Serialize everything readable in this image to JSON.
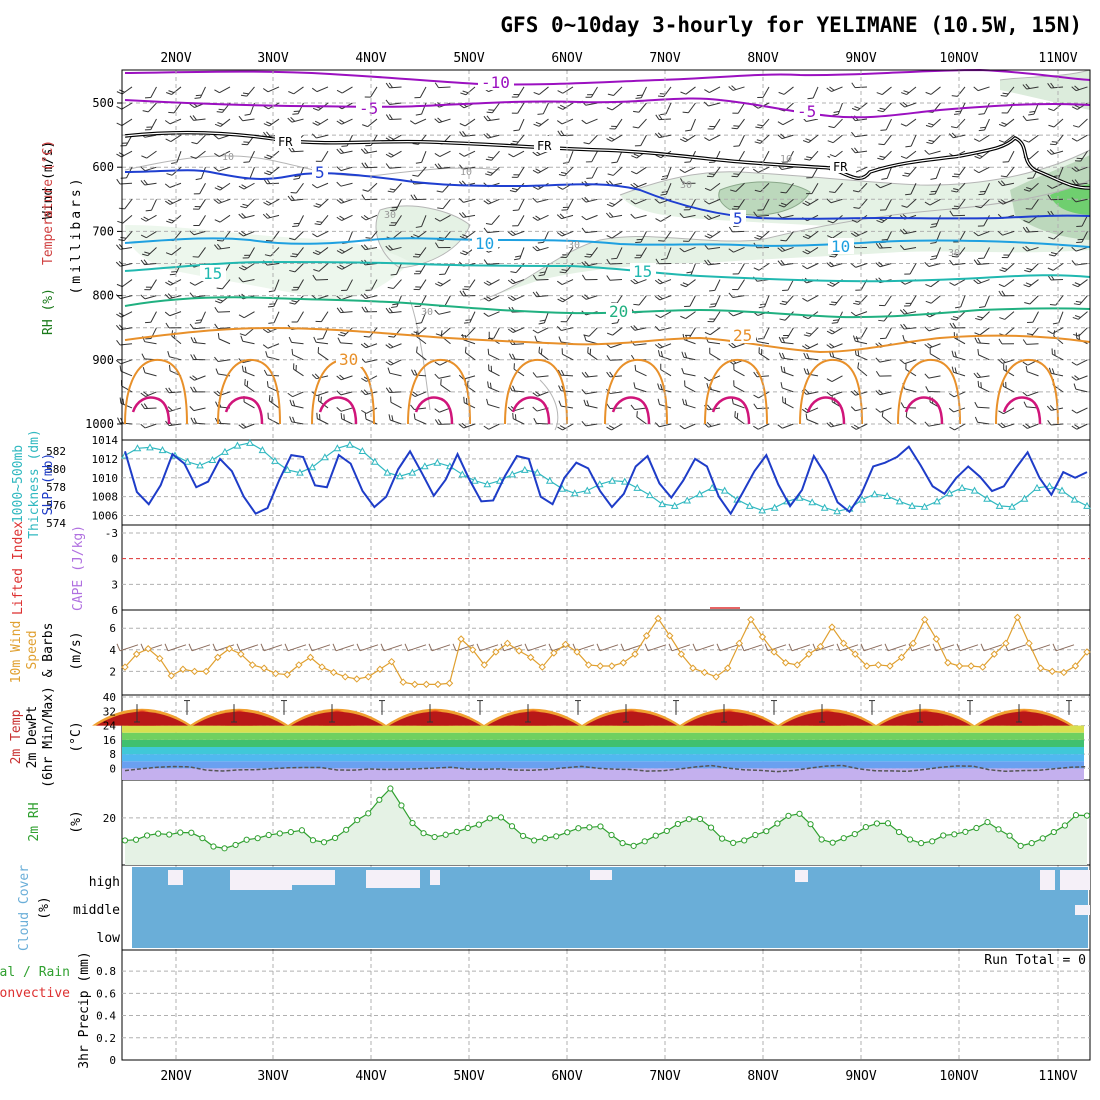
{
  "title": "GFS 0~10day 3-hourly for YELIMANE (10.5W, 15N)",
  "colors": {
    "temp_label": "#c83030",
    "wind_label": "#202020",
    "rh_fill": "#2e9e3e",
    "thickness": "#30b8c0",
    "slp": "#1e3cc8",
    "lifted": "#dd3030",
    "cape": "#b070e0",
    "wind10": "#e0a030",
    "rh2m": "#30a030",
    "cloud": "#6aaed8",
    "precip_total": "#30a030",
    "precip_conv": "#dd3030"
  },
  "chart_data": [
    {
      "type": "line",
      "panel": "upper-air",
      "title": "Temperature (°C) / Wind (m/s) / RH (%)",
      "ylabel": "millibars",
      "y_ticks": [
        500,
        600,
        700,
        800,
        900,
        1000
      ],
      "ylim": [
        1000,
        450
      ],
      "x_dates": [
        "2NOV",
        "3NOV",
        "4NOV",
        "5NOV",
        "6NOV",
        "7NOV",
        "8NOV",
        "9NOV",
        "10NOV",
        "11NOV"
      ],
      "isotherm_labels": [
        {
          "value": "-10",
          "color": "#9b10c0"
        },
        {
          "value": "-5",
          "color": "#9b10c0"
        },
        {
          "value": "-5",
          "color": "#9b10c0"
        },
        {
          "value": "FR",
          "color": "#000000"
        },
        {
          "value": "FR",
          "color": "#000000"
        },
        {
          "value": "FR",
          "color": "#000000"
        },
        {
          "value": "5",
          "color": "#1f3fd0"
        },
        {
          "value": "5",
          "color": "#1f3fd0"
        },
        {
          "value": "10",
          "color": "#1ea0e0"
        },
        {
          "value": "10",
          "color": "#1ea0e0"
        },
        {
          "value": "15",
          "color": "#20b8b0"
        },
        {
          "value": "15",
          "color": "#20b8b0"
        },
        {
          "value": "20",
          "color": "#20b080"
        },
        {
          "value": "25",
          "color": "#e8902a"
        },
        {
          "value": "30",
          "color": "#e8902a"
        }
      ],
      "rh_contour_labels": [
        "10",
        "10",
        "10",
        "30",
        "30",
        "30",
        "30",
        "30"
      ]
    },
    {
      "type": "line",
      "panel": "thickness-slp",
      "series": [
        {
          "name": "1000~500mb Thickness (dm)",
          "y_ticks": [
            574,
            576,
            578,
            580,
            582
          ],
          "values": [
            581.5,
            582.3,
            582.4,
            582.1,
            581.5,
            580.8,
            580.4,
            581.0,
            581.9,
            582.6,
            582.9,
            582.1,
            580.9,
            579.9,
            579.6,
            580.2,
            581.3,
            582.3,
            582.7,
            582.0,
            580.8,
            579.6,
            579.2,
            579.6,
            580.3,
            580.7,
            580.3,
            579.4,
            578.7,
            578.3,
            578.7,
            579.4,
            579.9,
            579.6,
            578.7,
            577.8,
            577.3,
            577.6,
            578.3,
            578.7,
            578.6,
            577.9,
            577.1,
            576.1,
            575.9,
            576.5,
            577.2,
            577.9,
            577.6,
            576.6,
            575.9,
            575.4,
            575.7,
            576.4,
            576.8,
            576.3,
            575.7,
            575.3,
            575.6,
            576.6,
            577.2,
            577.0,
            576.4,
            575.9,
            575.8,
            576.4,
            577.3,
            577.9,
            577.6,
            576.7,
            575.9,
            575.8,
            576.7,
            577.9,
            578.1,
            577.6,
            576.6,
            575.9
          ]
        },
        {
          "name": "SLP (mb)",
          "y_ticks": [
            1006,
            1008,
            1010,
            1012,
            1014
          ],
          "values": [
            1012.8,
            1008.5,
            1007.2,
            1009.2,
            1012.5,
            1011.5,
            1009.0,
            1009.6,
            1012.0,
            1010.7,
            1008.0,
            1006.2,
            1006.8,
            1009.8,
            1012.4,
            1012.2,
            1009.2,
            1009.0,
            1012.4,
            1011.5,
            1008.6,
            1006.9,
            1008.0,
            1010.9,
            1012.8,
            1010.5,
            1008.1,
            1009.8,
            1012.5,
            1009.8,
            1007.5,
            1007.6,
            1010.2,
            1012.3,
            1012.0,
            1008.0,
            1007.2,
            1010.0,
            1011.6,
            1011.0,
            1008.6,
            1006.9,
            1008.3,
            1011.2,
            1012.3,
            1009.4,
            1007.9,
            1009.7,
            1012.0,
            1011.2,
            1008.0,
            1006.2,
            1008.4,
            1010.7,
            1012.4,
            1009.3,
            1007.0,
            1008.7,
            1012.3,
            1010.3,
            1007.4,
            1006.4,
            1008.3,
            1011.2,
            1011.6,
            1012.2,
            1013.3,
            1011.3,
            1009.1,
            1008.3,
            1010.0,
            1011.2,
            1010.1,
            1008.6,
            1009.1,
            1011.0,
            1012.7,
            1010.0,
            1008.2,
            1010.6,
            1010.0,
            1010.6
          ]
        }
      ]
    },
    {
      "type": "line",
      "panel": "lifted-cape",
      "series": [
        {
          "name": "Lifted Index",
          "y_ticks": [
            -3,
            0,
            3,
            6
          ]
        },
        {
          "name": "CAPE (J/kg)",
          "y_ticks": []
        }
      ]
    },
    {
      "type": "line",
      "panel": "wind10m",
      "ylabel": "(m/s)",
      "y_ticks": [
        2,
        4,
        6
      ],
      "series": [
        {
          "name": "10m Wind Speed & Barbs",
          "values": [
            2.4,
            3.6,
            4.1,
            3.2,
            1.6,
            2.2,
            2.0,
            2.0,
            3.3,
            4.1,
            3.6,
            2.6,
            2.3,
            1.8,
            1.7,
            2.6,
            3.3,
            2.4,
            1.9,
            1.5,
            1.3,
            1.5,
            2.2,
            2.9,
            1.0,
            0.8,
            0.8,
            0.8,
            0.9,
            5.0,
            4.0,
            2.6,
            3.8,
            4.6,
            3.9,
            3.3,
            2.4,
            3.7,
            4.5,
            3.8,
            2.6,
            2.5,
            2.5,
            2.8,
            3.6,
            5.3,
            6.9,
            5.3,
            3.6,
            2.3,
            1.9,
            1.5,
            2.3,
            4.6,
            6.8,
            5.2,
            3.8,
            2.8,
            2.6,
            3.6,
            4.3,
            6.1,
            4.6,
            3.6,
            2.5,
            2.6,
            2.5,
            3.3,
            4.6,
            6.8,
            5.0,
            2.8,
            2.5,
            2.5,
            2.4,
            3.6,
            4.6,
            7.0,
            4.6,
            2.3,
            2.0,
            1.9,
            2.5,
            3.8
          ]
        }
      ]
    },
    {
      "type": "area",
      "panel": "temp2m",
      "ylabel": "(°C)",
      "y_ticks": [
        0,
        8,
        16,
        24,
        32,
        40
      ],
      "series": [
        {
          "name": "2m Temp",
          "values": [
            38.4,
            39.6,
            39.0,
            33.5,
            28.2,
            24.9,
            29.9,
            35.0
          ]
        },
        {
          "name": "2m DewPt",
          "values": [
            -1.2,
            -0.7,
            0.1,
            0.8,
            1.1,
            -0.4,
            -1.0,
            -0.8
          ]
        }
      ]
    },
    {
      "type": "area",
      "panel": "rh2m",
      "ylabel": "(%)",
      "y_ticks": [
        20
      ],
      "series": [
        {
          "name": "2m RH",
          "values": [
            10.0,
            10.3,
            12.2,
            13.0,
            12.6,
            13.5,
            13.4,
            11.0,
            7.3,
            6.5,
            8.0,
            10.3,
            11.0,
            12.4,
            13.1,
            13.7,
            14.5,
            10.1,
            9.2,
            11.1,
            14.7,
            19.0,
            22.0,
            28.0,
            33.0,
            25.5,
            17.7,
            13.2,
            11.5,
            12.5,
            13.8,
            15.5,
            17.0,
            19.8,
            20.2,
            16.3,
            12.0,
            10.0,
            11.0,
            11.8,
            13.6,
            15.4,
            15.8,
            16.2,
            12.4,
            8.8,
            7.6,
            9.6,
            12.1,
            14.2,
            17.3,
            19.4,
            19.5,
            15.7,
            10.8,
            8.9,
            10.0,
            12.4,
            14.1,
            17.5,
            20.9,
            21.8,
            17.2,
            10.4,
            9.0,
            11.0,
            12.8,
            15.9,
            17.5,
            17.6,
            13.7,
            10.4,
            8.8,
            9.6,
            12.2,
            12.7,
            13.8,
            15.5,
            18.1,
            14.9,
            12.1,
            7.6,
            8.8,
            10.9,
            13.7,
            16.6,
            21.2,
            21.0
          ]
        }
      ]
    },
    {
      "type": "bar",
      "panel": "cloud",
      "title": "Cloud Cover (%)",
      "categories": [
        "high",
        "middle",
        "low"
      ]
    },
    {
      "type": "bar",
      "panel": "precip",
      "title": "3hr Precip (mm)",
      "series": [
        {
          "name": "Total / Rain"
        },
        {
          "name": "Convective"
        }
      ],
      "y_ticks": [
        "0",
        "0.2",
        "0.4",
        "0.6",
        "0.8"
      ],
      "ylim": [
        0,
        0.9
      ],
      "run_total": "Run Total = 0"
    }
  ],
  "labels": {
    "upper_wind": "Wind (m/s)",
    "upper_temp": "Temperature (°C)",
    "upper_rh": "RH (%)",
    "millibars": "(millibars)",
    "thick_a": "1000~500mb",
    "thick_b": "Thickness (dm)",
    "slp": "SLP (mb)",
    "lifted": "Lifted Index",
    "cape": "CAPE (J/kg)",
    "wind_a": "10m Wind",
    "wind_b": "Speed",
    "wind_c": "& Barbs",
    "wind_units": "(m/s)",
    "temp_a": "2m Temp",
    "temp_b": "2m DewPt",
    "temp_c": "(6hr Min/Max)",
    "temp_units": "(°C)",
    "rh_a": "2m RH",
    "rh_units": "(%)",
    "cloud_a": "Cloud Cover",
    "cloud_units": "(%)",
    "precip_a": "Total / Rain",
    "precip_b": "Convective",
    "precip_units": "3hr Precip (mm)"
  }
}
